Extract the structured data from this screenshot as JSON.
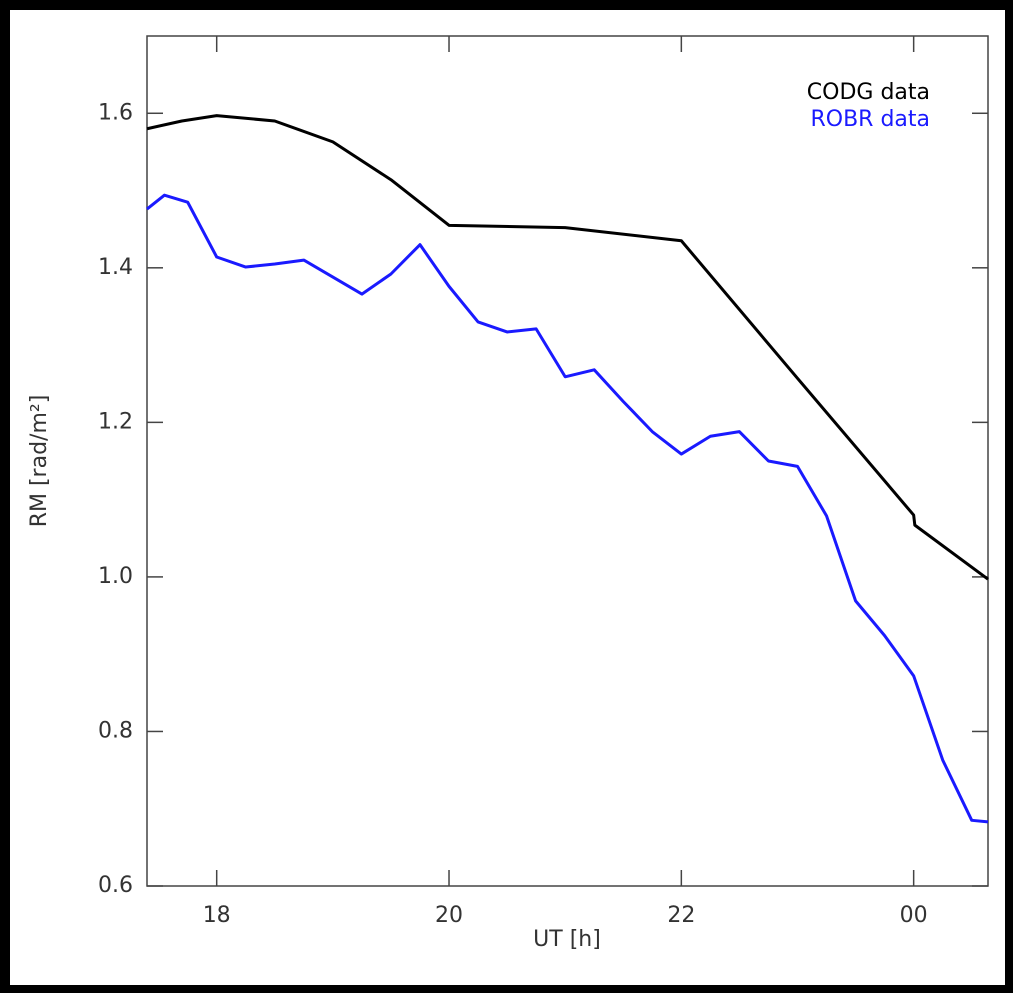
{
  "chart_data": {
    "type": "line",
    "xlabel": "UT [h]",
    "ylabel": "RM [rad/m²]",
    "xlim": [
      17.4,
      24.64
    ],
    "ylim": [
      0.6,
      1.7
    ],
    "xticks": [
      18,
      20,
      22,
      {
        "value": 24,
        "label": "00"
      }
    ],
    "yticks": [
      0.6,
      0.8,
      {
        "value": 1,
        "label": "1.0"
      },
      1.2,
      1.4,
      1.6
    ],
    "legend": "upper right",
    "series": [
      {
        "name": "CODG data",
        "color": "#000000",
        "x": [
          17.4,
          17.7,
          18.0,
          18.5,
          19.0,
          19.5,
          20.0,
          21.0,
          22.0,
          23.0,
          24.0,
          24.01,
          24.64
        ],
        "values": [
          1.58,
          1.59,
          1.597,
          1.59,
          1.563,
          1.514,
          1.455,
          1.452,
          1.435,
          1.257,
          1.08,
          1.067,
          0.997
        ]
      },
      {
        "name": "ROBR data",
        "color": "#1a1aff",
        "x": [
          17.4,
          17.55,
          17.75,
          18.0,
          18.25,
          18.5,
          18.75,
          19.0,
          19.25,
          19.5,
          19.75,
          20.0,
          20.25,
          20.5,
          20.75,
          21.0,
          21.25,
          21.5,
          21.75,
          22.0,
          22.25,
          22.5,
          22.75,
          23.0,
          23.25,
          23.5,
          23.75,
          24.0,
          24.25,
          24.5,
          24.64
        ],
        "values": [
          1.476,
          1.494,
          1.485,
          1.414,
          1.401,
          1.405,
          1.41,
          1.388,
          1.366,
          1.392,
          1.43,
          1.376,
          1.33,
          1.317,
          1.321,
          1.259,
          1.268,
          1.227,
          1.188,
          1.159,
          1.182,
          1.188,
          1.15,
          1.143,
          1.079,
          0.969,
          0.924,
          0.872,
          0.763,
          0.685,
          0.683
        ]
      }
    ]
  }
}
